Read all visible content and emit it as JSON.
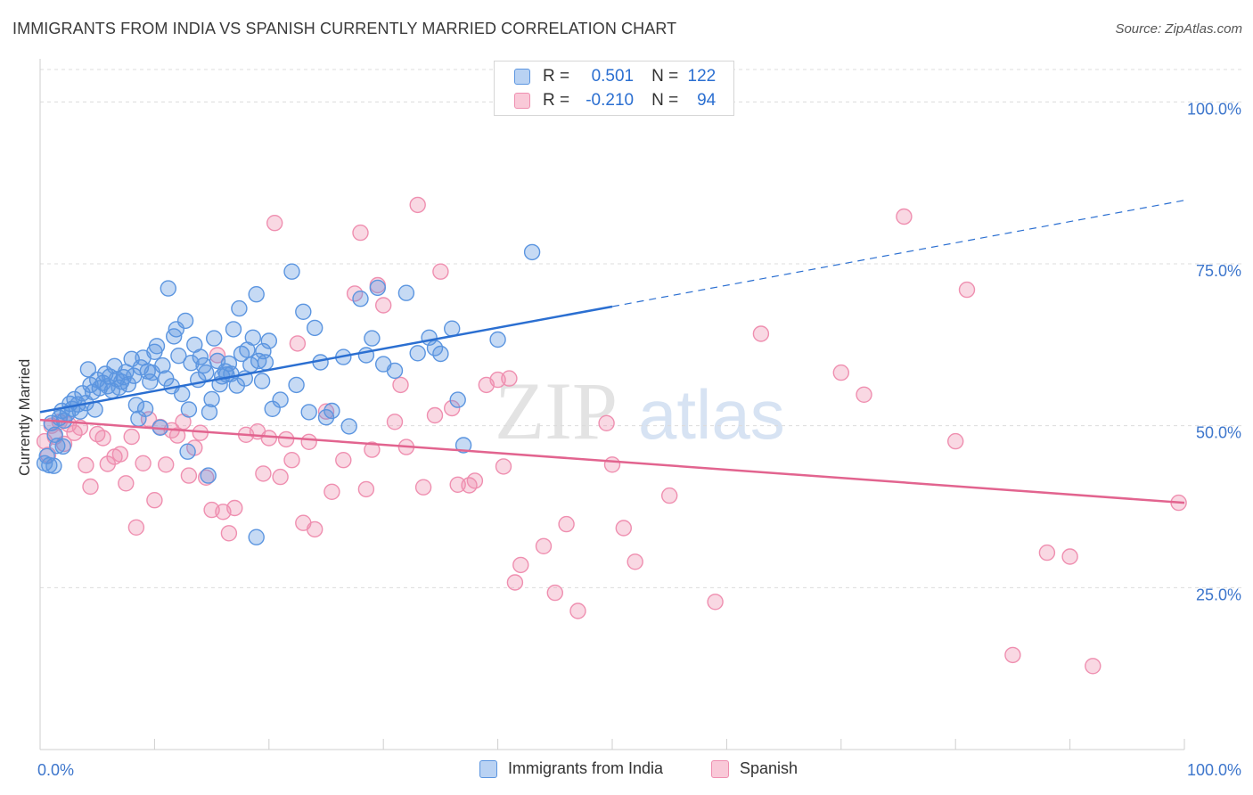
{
  "header": {
    "title": "IMMIGRANTS FROM INDIA VS SPANISH CURRENTLY MARRIED CORRELATION CHART",
    "source": "Source: ZipAtlas.com"
  },
  "watermark": {
    "part1": "ZIP",
    "part2": "atlas"
  },
  "legend": {
    "r_label": "R =",
    "n_label": "N =",
    "series": [
      {
        "r": "0.501",
        "n": "122"
      },
      {
        "r": "-0.210",
        "n": "94"
      }
    ]
  },
  "chart_data": {
    "type": "scatter",
    "title": "IMMIGRANTS FROM INDIA VS SPANISH CURRENTLY MARRIED CORRELATION CHART",
    "xlabel": "",
    "ylabel": "Currently Married",
    "xlim": [
      0,
      100
    ],
    "ylim": [
      0,
      105
    ],
    "x_tick_labels": [
      "0.0%",
      "100.0%"
    ],
    "y_ticks": [
      25,
      50,
      75,
      100
    ],
    "y_tick_labels": [
      "25.0%",
      "50.0%",
      "75.0%",
      "100.0%"
    ],
    "grid": "horizontal dashed",
    "legend_placement": "top-center and bottom",
    "colors": {
      "india": "#5b95e0",
      "spanish": "#ef8fb0",
      "india_line": "#2b6fd1",
      "spanish_line": "#e2648f",
      "axis_text": "#3d76cc"
    },
    "series": [
      {
        "name": "Immigrants from India",
        "r": 0.501,
        "n": 122,
        "trend": {
          "x": [
            0,
            50,
            100
          ],
          "y": [
            52.1,
            68.4,
            84.8
          ],
          "solid_until": 50
        },
        "points": [
          [
            0.4,
            44.2
          ],
          [
            0.6,
            45.3
          ],
          [
            0.8,
            43.9
          ],
          [
            1,
            50.4
          ],
          [
            1.3,
            48.6
          ],
          [
            1.5,
            46.9
          ],
          [
            1.7,
            51.2
          ],
          [
            1.9,
            52.3
          ],
          [
            2.1,
            50.8
          ],
          [
            2.4,
            51.9
          ],
          [
            2.6,
            53.4
          ],
          [
            2.8,
            52.6
          ],
          [
            3,
            54.1
          ],
          [
            3.3,
            53.3
          ],
          [
            3.5,
            52.2
          ],
          [
            3.7,
            55.0
          ],
          [
            4,
            53.5
          ],
          [
            4.2,
            58.7
          ],
          [
            4.4,
            56.3
          ],
          [
            4.6,
            55.2
          ],
          [
            4.8,
            52.5
          ],
          [
            5,
            57.1
          ],
          [
            5.2,
            55.8
          ],
          [
            5.5,
            56.6
          ],
          [
            5.7,
            58.0
          ],
          [
            5.9,
            56.1
          ],
          [
            6.1,
            57.6
          ],
          [
            6.3,
            55.4
          ],
          [
            6.5,
            59.2
          ],
          [
            6.7,
            57.2
          ],
          [
            6.9,
            55.9
          ],
          [
            7.1,
            56.8
          ],
          [
            7.3,
            57.5
          ],
          [
            7.5,
            58.3
          ],
          [
            7.7,
            56.4
          ],
          [
            8,
            60.3
          ],
          [
            8.2,
            57.7
          ],
          [
            8.4,
            53.2
          ],
          [
            8.6,
            51.1
          ],
          [
            8.8,
            59.0
          ],
          [
            9,
            60.5
          ],
          [
            9.2,
            52.6
          ],
          [
            9.4,
            58.4
          ],
          [
            9.6,
            56.8
          ],
          [
            9.8,
            58.2
          ],
          [
            10,
            61.4
          ],
          [
            10.2,
            62.3
          ],
          [
            10.5,
            49.7
          ],
          [
            10.7,
            59.3
          ],
          [
            11,
            57.3
          ],
          [
            11.2,
            71.2
          ],
          [
            11.5,
            56.1
          ],
          [
            11.7,
            63.8
          ],
          [
            11.9,
            64.9
          ],
          [
            12.1,
            60.8
          ],
          [
            12.4,
            54.9
          ],
          [
            12.7,
            66.2
          ],
          [
            13,
            52.5
          ],
          [
            13.2,
            59.7
          ],
          [
            13.5,
            62.5
          ],
          [
            13.8,
            57.1
          ],
          [
            14,
            60.6
          ],
          [
            14.3,
            59.3
          ],
          [
            14.5,
            58.2
          ],
          [
            14.8,
            52.1
          ],
          [
            15,
            54.1
          ],
          [
            15.2,
            63.5
          ],
          [
            15.5,
            60.0
          ],
          [
            15.7,
            56.4
          ],
          [
            15.9,
            57.6
          ],
          [
            16.2,
            58.4
          ],
          [
            16.5,
            59.6
          ],
          [
            16.7,
            58.0
          ],
          [
            16.9,
            64.9
          ],
          [
            17.2,
            56.2
          ],
          [
            17.4,
            68.1
          ],
          [
            17.6,
            61.1
          ],
          [
            17.9,
            57.3
          ],
          [
            18.1,
            61.7
          ],
          [
            18.4,
            59.4
          ],
          [
            18.6,
            63.6
          ],
          [
            18.9,
            70.3
          ],
          [
            19.1,
            60.0
          ],
          [
            19.4,
            56.9
          ],
          [
            19.7,
            59.8
          ],
          [
            20,
            63.1
          ],
          [
            20.3,
            52.6
          ],
          [
            21,
            54.0
          ],
          [
            22,
            73.8
          ],
          [
            22.4,
            56.3
          ],
          [
            23,
            67.6
          ],
          [
            23.5,
            52.1
          ],
          [
            24,
            65.1
          ],
          [
            24.5,
            59.8
          ],
          [
            25,
            51.3
          ],
          [
            25.5,
            52.3
          ],
          [
            26.5,
            60.6
          ],
          [
            27,
            49.9
          ],
          [
            28,
            69.6
          ],
          [
            28.5,
            60.9
          ],
          [
            29,
            63.5
          ],
          [
            29.5,
            71.3
          ],
          [
            30,
            59.5
          ],
          [
            31,
            58.5
          ],
          [
            32,
            70.5
          ],
          [
            33,
            61.2
          ],
          [
            34,
            63.6
          ],
          [
            34.5,
            62.0
          ],
          [
            35,
            61.1
          ],
          [
            36,
            65.0
          ],
          [
            36.5,
            54.0
          ],
          [
            37,
            47.0
          ],
          [
            40,
            63.3
          ],
          [
            43,
            76.8
          ],
          [
            1.2,
            43.8
          ],
          [
            2,
            46.8
          ],
          [
            12.9,
            46.0
          ],
          [
            14.7,
            42.3
          ],
          [
            18.9,
            32.8
          ],
          [
            16.3,
            57.9
          ],
          [
            19.5,
            61.5
          ]
        ]
      },
      {
        "name": "Spanish",
        "r": -0.21,
        "n": 94,
        "trend": {
          "x": [
            0,
            100
          ],
          "y": [
            50.9,
            38.1
          ]
        },
        "points": [
          [
            0.4,
            47.6
          ],
          [
            0.7,
            45.5
          ],
          [
            1,
            50.0
          ],
          [
            1.3,
            48.3
          ],
          [
            1.7,
            50.6
          ],
          [
            2.1,
            47.2
          ],
          [
            2.5,
            50.2
          ],
          [
            3,
            48.9
          ],
          [
            3.5,
            49.7
          ],
          [
            4,
            43.9
          ],
          [
            4.4,
            40.6
          ],
          [
            5,
            48.7
          ],
          [
            5.5,
            48.1
          ],
          [
            5.9,
            44.1
          ],
          [
            6.5,
            45.2
          ],
          [
            7,
            45.6
          ],
          [
            7.5,
            41.1
          ],
          [
            8,
            48.3
          ],
          [
            8.4,
            34.3
          ],
          [
            9,
            44.2
          ],
          [
            9.5,
            51.0
          ],
          [
            10,
            38.5
          ],
          [
            10.5,
            49.8
          ],
          [
            11,
            44.0
          ],
          [
            11.5,
            49.3
          ],
          [
            12,
            48.5
          ],
          [
            12.5,
            50.6
          ],
          [
            13,
            42.3
          ],
          [
            13.5,
            46.6
          ],
          [
            14,
            48.9
          ],
          [
            14.5,
            42.0
          ],
          [
            15,
            37.0
          ],
          [
            15.5,
            60.9
          ],
          [
            16,
            36.7
          ],
          [
            16.5,
            33.4
          ],
          [
            17,
            37.3
          ],
          [
            18,
            48.6
          ],
          [
            19,
            49.1
          ],
          [
            19.5,
            42.6
          ],
          [
            20,
            48.1
          ],
          [
            20.5,
            81.3
          ],
          [
            21,
            42.1
          ],
          [
            21.5,
            47.9
          ],
          [
            22,
            44.7
          ],
          [
            22.5,
            62.7
          ],
          [
            23,
            35.0
          ],
          [
            23.5,
            47.5
          ],
          [
            24,
            34.0
          ],
          [
            25,
            52.2
          ],
          [
            25.5,
            39.8
          ],
          [
            26.5,
            44.7
          ],
          [
            27.5,
            70.4
          ],
          [
            28,
            79.8
          ],
          [
            28.5,
            40.2
          ],
          [
            29,
            46.3
          ],
          [
            29.5,
            71.7
          ],
          [
            30,
            68.6
          ],
          [
            31,
            50.6
          ],
          [
            31.5,
            56.3
          ],
          [
            32,
            46.7
          ],
          [
            33,
            84.1
          ],
          [
            33.5,
            40.5
          ],
          [
            34.5,
            51.6
          ],
          [
            35,
            73.8
          ],
          [
            36,
            52.7
          ],
          [
            36.5,
            40.9
          ],
          [
            37.5,
            40.8
          ],
          [
            38,
            41.5
          ],
          [
            39,
            56.3
          ],
          [
            40,
            57.1
          ],
          [
            40.5,
            43.7
          ],
          [
            41,
            57.3
          ],
          [
            41.5,
            25.8
          ],
          [
            42,
            28.5
          ],
          [
            44,
            31.4
          ],
          [
            45,
            24.2
          ],
          [
            46,
            34.8
          ],
          [
            47,
            21.4
          ],
          [
            49.5,
            50.4
          ],
          [
            50,
            44.0
          ],
          [
            51,
            34.2
          ],
          [
            52,
            29.0
          ],
          [
            55,
            39.2
          ],
          [
            59,
            22.8
          ],
          [
            63,
            64.2
          ],
          [
            70,
            58.2
          ],
          [
            72,
            54.8
          ],
          [
            75.5,
            82.3
          ],
          [
            80,
            47.6
          ],
          [
            81,
            71.0
          ],
          [
            85,
            14.6
          ],
          [
            88,
            30.4
          ],
          [
            90,
            29.8
          ],
          [
            92,
            12.9
          ],
          [
            99.5,
            38.1
          ]
        ]
      }
    ]
  },
  "bottom_legend": {
    "items": [
      {
        "label": "Immigrants from India"
      },
      {
        "label": "Spanish"
      }
    ]
  }
}
